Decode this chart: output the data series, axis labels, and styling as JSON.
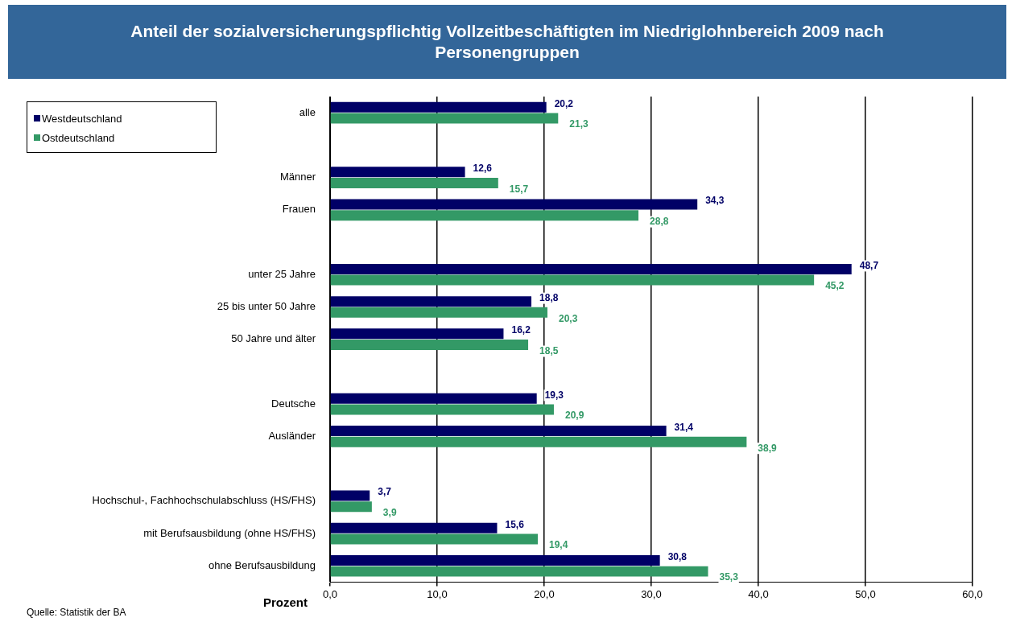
{
  "chart_data": {
    "type": "bar",
    "orientation": "horizontal",
    "title": "Anteil der sozialversicherungspflichtig Vollzeitbeschäftigten im Niedriglohnbereich 2009 nach Personengruppen",
    "xlabel": "Prozent",
    "categories": [
      "alle",
      null,
      "Männer",
      "Frauen",
      null,
      "unter 25 Jahre",
      "25 bis unter 50 Jahre",
      "50 Jahre und älter",
      null,
      "Deutsche",
      "Ausländer",
      null,
      "Hochschul-, Fachhochschulabschluss (HS/FHS)",
      "mit Berufsausbildung (ohne HS/FHS)",
      "ohne Berufsausbildung"
    ],
    "series": [
      {
        "name": "Westdeutschland",
        "color": "#000066",
        "values": [
          20.2,
          null,
          12.6,
          34.3,
          null,
          48.7,
          18.8,
          16.2,
          null,
          19.3,
          31.4,
          null,
          3.7,
          15.6,
          30.8
        ],
        "value_labels": [
          "20,2",
          null,
          "12,6",
          "34,3",
          null,
          "48,7",
          "18,8",
          "16,2",
          null,
          "19,3",
          "31,4",
          null,
          "3,7",
          "15,6",
          "30,8"
        ]
      },
      {
        "name": "Ostdeutschland",
        "color": "#339966",
        "values": [
          21.3,
          null,
          15.7,
          28.8,
          null,
          45.2,
          20.3,
          18.5,
          null,
          20.9,
          38.9,
          null,
          3.9,
          19.4,
          35.3
        ],
        "value_labels": [
          "21,3",
          null,
          "15,7",
          "28,8",
          null,
          "45,2",
          "20,3",
          "18,5",
          null,
          "20,9",
          "38,9",
          null,
          "3,9",
          "19,4",
          "35,3"
        ]
      }
    ],
    "xlim": [
      0,
      60
    ],
    "xticks": [
      {
        "value": 0,
        "label": "0,0"
      },
      {
        "value": 10,
        "label": "10,0"
      },
      {
        "value": 20,
        "label": "20,0"
      },
      {
        "value": 30,
        "label": "30,0"
      },
      {
        "value": 40,
        "label": "40,0"
      },
      {
        "value": 50,
        "label": "50,0"
      },
      {
        "value": 60,
        "label": "60,0"
      }
    ],
    "grid": "x",
    "legend": "top left",
    "annotations": [
      "Quelle: Statistik der BA"
    ]
  }
}
